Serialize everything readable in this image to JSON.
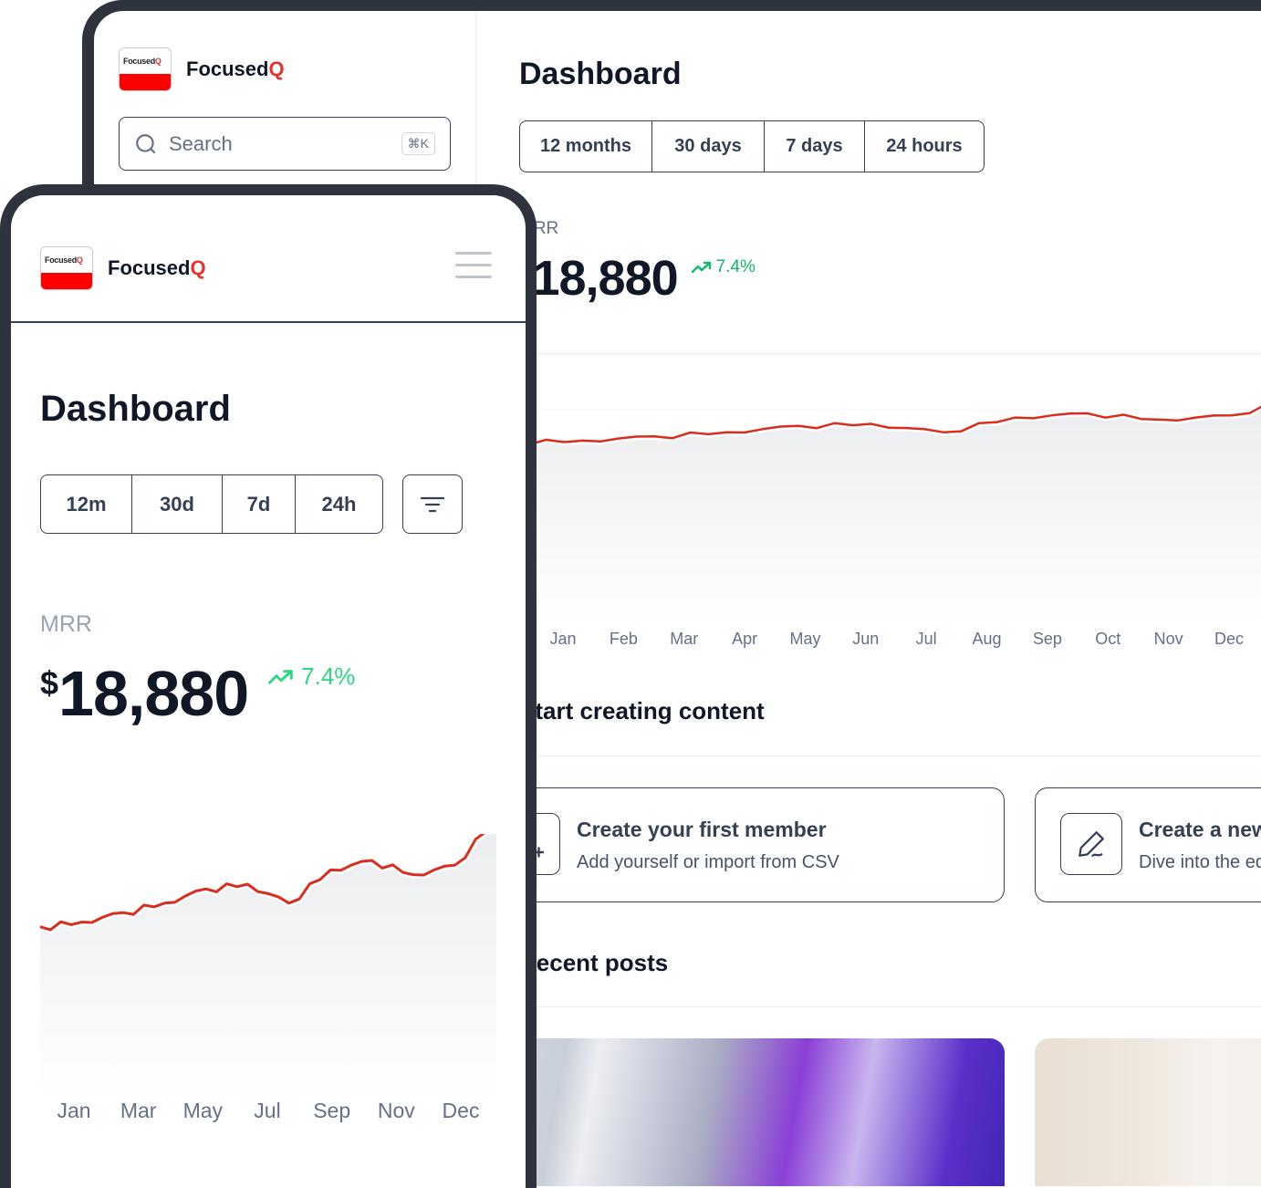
{
  "brand": {
    "name_main": "Focused",
    "name_accent": "Q",
    "logo_text_main": "Focused",
    "logo_text_accent": "Q",
    "accent_color": "#e5322d"
  },
  "desktop": {
    "search": {
      "placeholder": "Search",
      "shortcut": "⌘K"
    },
    "page_title": "Dashboard",
    "ranges": [
      "12 months",
      "30 days",
      "7 days",
      "24 hours"
    ],
    "metric": {
      "label": "MRR",
      "currency": "$",
      "value": "18,880",
      "change": "7.4%"
    },
    "months": [
      "Jan",
      "Feb",
      "Mar",
      "Apr",
      "May",
      "Jun",
      "Jul",
      "Aug",
      "Sep",
      "Oct",
      "Nov",
      "Dec"
    ],
    "section_create": "Start creating content",
    "cards": [
      {
        "title": "Create your first member",
        "subtitle": "Add yourself or import from CSV",
        "icon": "user-plus-icon"
      },
      {
        "title": "Create a new post",
        "subtitle": "Dive into the editor",
        "icon": "pen-icon"
      }
    ],
    "section_posts": "Recent posts"
  },
  "mobile": {
    "page_title": "Dashboard",
    "ranges": [
      "12m",
      "30d",
      "7d",
      "24h"
    ],
    "metric": {
      "label": "MRR",
      "currency": "$",
      "value": "18,880",
      "change": "7.4%"
    },
    "months": [
      "Jan",
      "Mar",
      "May",
      "Jul",
      "Sep",
      "Nov",
      "Dec"
    ]
  },
  "chart_data": {
    "type": "area",
    "title": "MRR",
    "categories": [
      "Jan",
      "Feb",
      "Mar",
      "Apr",
      "May",
      "Jun",
      "Jul",
      "Aug",
      "Sep",
      "Oct",
      "Nov",
      "Dec"
    ],
    "series": [
      {
        "name": "MRR",
        "values": [
          16600,
          16700,
          16900,
          17100,
          17400,
          17500,
          17100,
          17800,
          18000,
          17700,
          17900,
          18880
        ]
      }
    ],
    "ylim": [
      10000,
      20000
    ],
    "line_color": "#d92d20"
  }
}
